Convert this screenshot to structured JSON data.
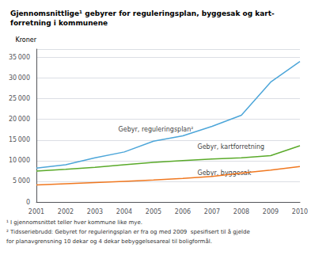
{
  "chart_data": {
    "type": "line",
    "title": "Gjennomsnittlige¹ gebyrer for reguleringsplan, byggesak og kart-\nforretning i kommunene",
    "ylabel": "Kroner",
    "x": [
      2001,
      2002,
      2003,
      2004,
      2005,
      2006,
      2007,
      2008,
      2009,
      2010
    ],
    "xlim": [
      2001,
      2010
    ],
    "xticks": [
      2001,
      2002,
      2003,
      2004,
      2005,
      2006,
      2007,
      2008,
      2009,
      2010
    ],
    "ylim": [
      0,
      37000
    ],
    "yticks": [
      0,
      {
        "value": 5000,
        "label": "5 000"
      },
      {
        "value": 10000,
        "label": "10 000"
      },
      {
        "value": 15000,
        "label": "15 000"
      },
      {
        "value": 20000,
        "label": "20 000"
      },
      {
        "value": 25000,
        "label": "25 000"
      },
      {
        "value": 30000,
        "label": "30 000"
      },
      {
        "value": 35000,
        "label": "35 000"
      }
    ],
    "grid": true,
    "series": [
      {
        "color": "#4da6d9",
        "values": [
          8200,
          9000,
          10700,
          12100,
          14700,
          16000,
          18300,
          21000,
          29000,
          34000
        ]
      },
      {
        "color": "#5aaa2a",
        "values": [
          7500,
          7900,
          8400,
          9000,
          9600,
          10000,
          10400,
          10700,
          11200,
          13600
        ]
      },
      {
        "color": "#f07820",
        "values": [
          4100,
          4400,
          4700,
          5000,
          5300,
          5700,
          6200,
          7000,
          7700,
          8600
        ]
      }
    ],
    "annotations": [
      {
        "text": "Gebyr, reguleringsplan²",
        "x": 2003.8,
        "y": 17500
      },
      {
        "text": "Gebyr, kartforretning",
        "x": 2006.5,
        "y": 13300
      },
      {
        "text": "Gebyr, byggesak",
        "x": 2006.5,
        "y": 7000
      }
    ],
    "footnotes": [
      "¹ I gjennomsnittet teller hver kommune like mye.",
      "² Tidsseriebrudd: Gebyret for reguleringsplan er fra og med 2009  spesifisert til å gjelde",
      "for planavgrensning 10 dekar og 4 dekar bebyggelsesareal til boligformål."
    ]
  }
}
